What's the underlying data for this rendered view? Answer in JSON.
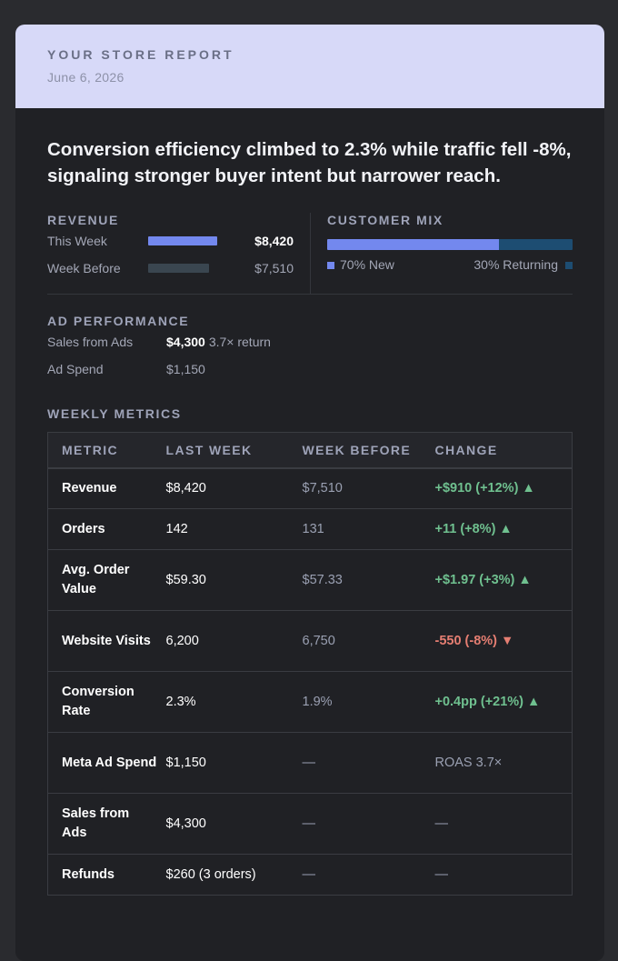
{
  "header": {
    "brand": "YOUR STORE REPORT",
    "date": "June 6, 2026"
  },
  "headline": "Conversion efficiency climbed to 2.3% while traffic fell -8%, signaling stronger buyer intent but narrower reach.",
  "revenue": {
    "title": "REVENUE",
    "this_week": {
      "label": "This Week",
      "value": "$8,420",
      "amount": 8420
    },
    "week_before": {
      "label": "Week Before",
      "value": "$7,510",
      "amount": 7510
    }
  },
  "customer_mix": {
    "title": "CUSTOMER MIX",
    "new_pct": 70,
    "new_label": "70% New",
    "returning_label": "30% Returning"
  },
  "ad_performance": {
    "title": "AD PERFORMANCE",
    "sales_label": "Sales from Ads",
    "sales_value": "$4,300",
    "sales_note": "3.7× return",
    "spend_label": "Ad Spend",
    "spend_value": "$1,150"
  },
  "weekly_metrics": {
    "title": "WEEKLY METRICS",
    "columns": [
      "METRIC",
      "LAST WEEK",
      "WEEK BEFORE",
      "CHANGE"
    ],
    "rows": [
      {
        "metric": "Revenue",
        "last": "$8,420",
        "before": "$7,510",
        "change": "+$910 (+12%) ▲",
        "trend": "pos"
      },
      {
        "metric": "Orders",
        "last": "142",
        "before": "131",
        "change": "+11 (+8%) ▲",
        "trend": "pos"
      },
      {
        "metric": "Avg. Order Value",
        "last": "$59.30",
        "before": "$57.33",
        "change": "+$1.97 (+3%) ▲",
        "trend": "pos"
      },
      {
        "metric": "Website Visits",
        "last": "6,200",
        "before": "6,750",
        "change": "-550 (-8%) ▼",
        "trend": "neg"
      },
      {
        "metric": "Conversion Rate",
        "last": "2.3%",
        "before": "1.9%",
        "change": "+0.4pp (+21%) ▲",
        "trend": "pos"
      },
      {
        "metric": "Meta Ad Spend",
        "last": "$1,150",
        "before": "—",
        "change": "ROAS 3.7×",
        "trend": "neu"
      },
      {
        "metric": "Sales from Ads",
        "last": "$4,300",
        "before": "—",
        "change": "—",
        "trend": "neu"
      },
      {
        "metric": "Refunds",
        "last": "$260 (3 orders)",
        "before": "—",
        "change": "—",
        "trend": "neu"
      }
    ]
  },
  "colors": {
    "accent": "#7388ee",
    "returning": "#1d4d72",
    "positive": "#6fc08f",
    "negative": "#e57e72"
  }
}
